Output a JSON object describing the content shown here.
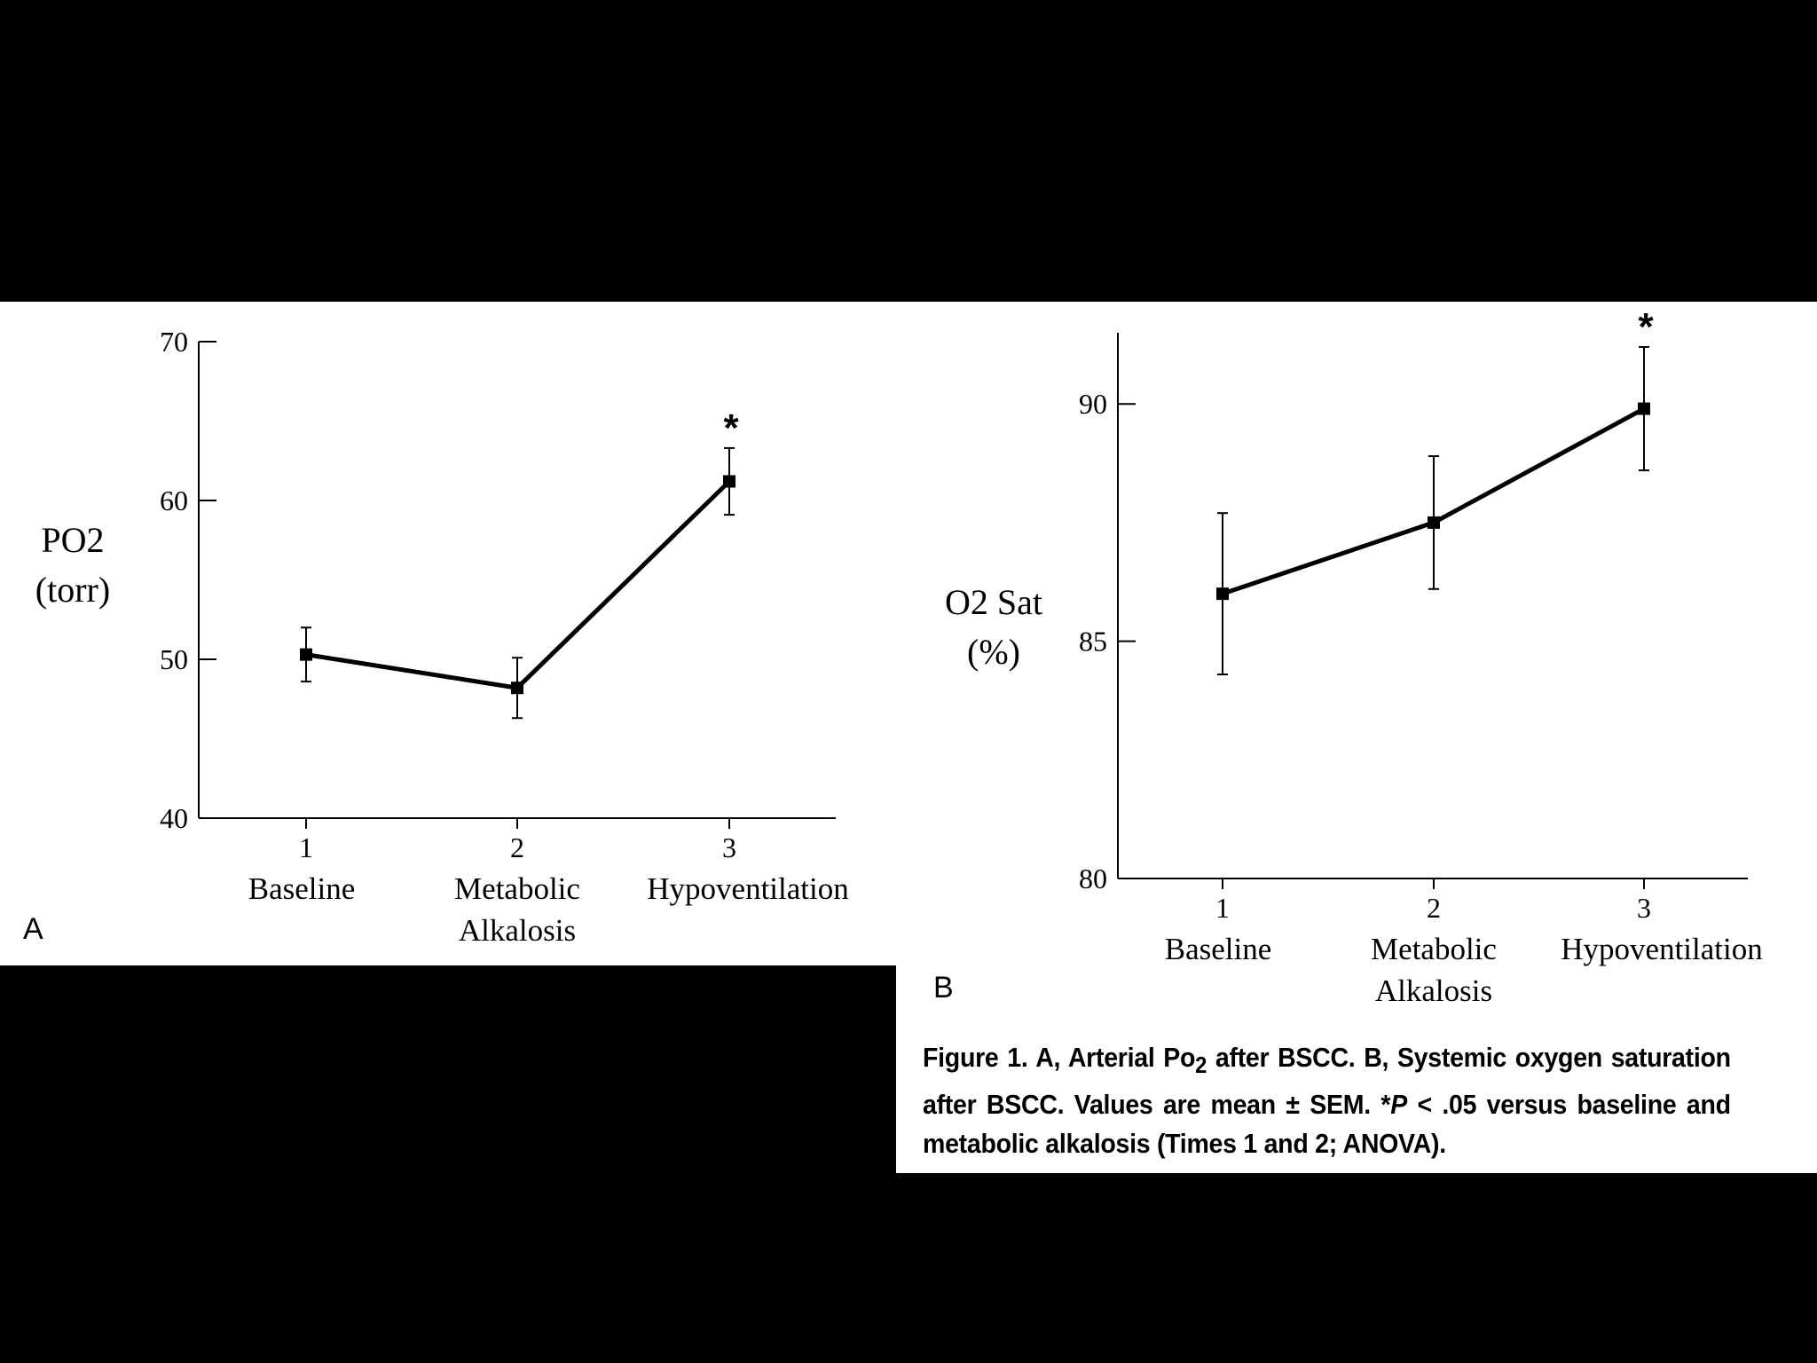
{
  "chart_data": [
    {
      "type": "line",
      "panel_label": "A",
      "ylabel_line1": "PO2",
      "ylabel_line2": "(torr)",
      "ylim": [
        40,
        70
      ],
      "yticks": [
        "40",
        "50",
        "60",
        "70"
      ],
      "ytick_values": [
        40,
        50,
        60,
        70
      ],
      "x": [
        "1",
        "2",
        "3"
      ],
      "categories": [
        [
          "Baseline"
        ],
        [
          "Metabolic",
          "Alkalosis"
        ],
        [
          "Hypoventilation"
        ]
      ],
      "values": [
        50.3,
        48.2,
        61.2
      ],
      "errors": [
        1.7,
        1.9,
        2.1
      ],
      "significance": [
        "",
        "",
        "*"
      ]
    },
    {
      "type": "line",
      "panel_label": "B",
      "ylabel_line1": "O2 Sat",
      "ylabel_line2": "(%)",
      "ylim": [
        80,
        91.5
      ],
      "yticks": [
        "80",
        "85",
        "90"
      ],
      "ytick_values": [
        80,
        85,
        90
      ],
      "x": [
        "1",
        "2",
        "3"
      ],
      "categories": [
        [
          "Baseline"
        ],
        [
          "Metabolic",
          "Alkalosis"
        ],
        [
          "Hypoventilation"
        ]
      ],
      "values": [
        86.0,
        87.5,
        89.9
      ],
      "errors": [
        1.7,
        1.4,
        1.3
      ],
      "significance": [
        "",
        "",
        "*"
      ]
    }
  ],
  "caption": {
    "p1": "Figure 1.  A, Arterial Po",
    "sub": "2",
    "p2": " after BSCC. B, Systemic oxygen saturation after BSCC. Values are mean ± SEM. *",
    "italic": "P",
    "p3": " < .05 versus baseline and metabolic alkalosis (Times 1 and 2; ANOVA)."
  }
}
